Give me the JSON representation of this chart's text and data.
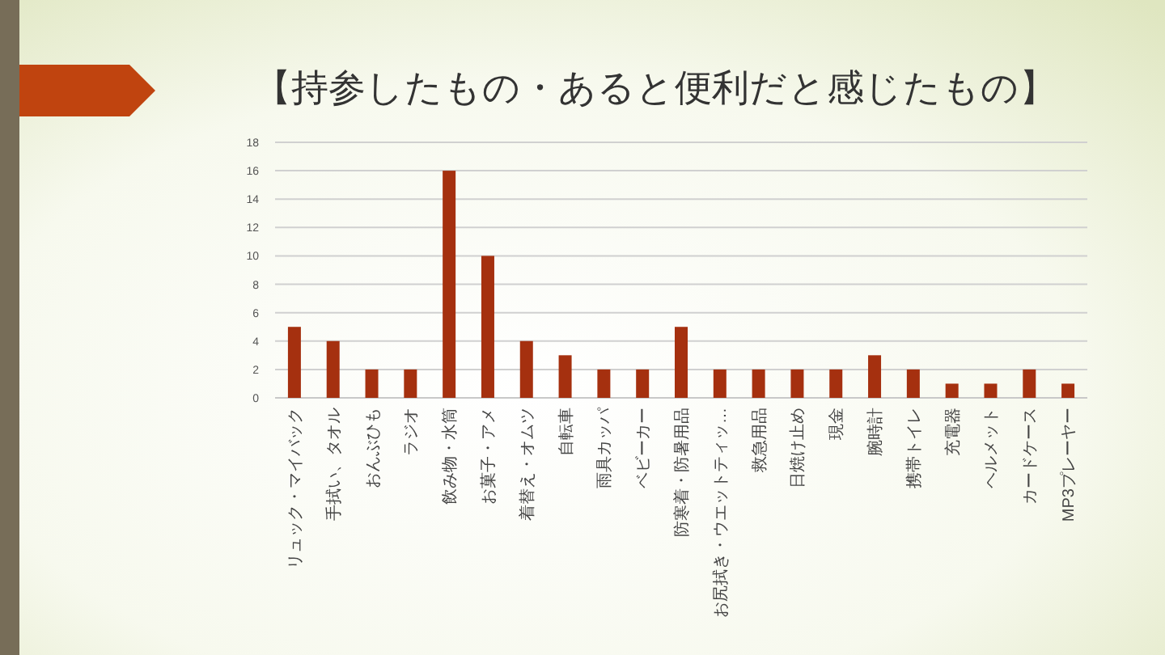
{
  "chart_data": {
    "type": "bar",
    "title": "【持参したもの・あると便利だと感じたもの】",
    "categories": [
      "リュック・マイバック",
      "手拭い、タオル",
      "おんぶひも",
      "ラジオ",
      "飲み物・水筒",
      "お菓子・アメ",
      "着替え・オムツ",
      "自転車",
      "雨具カッパ",
      "ベビーカー",
      "防寒着・防暑用品",
      "お尻拭き・ウエットティッ…",
      "救急用品",
      "日焼け止め",
      "現金",
      "腕時計",
      "携帯トイレ",
      "充電器",
      "ヘルメット",
      "カードケース",
      "MP3プレーヤー"
    ],
    "values": [
      5,
      4,
      2,
      2,
      16,
      10,
      4,
      3,
      2,
      2,
      5,
      2,
      2,
      2,
      2,
      3,
      2,
      1,
      1,
      2,
      1
    ],
    "color": "#a5300f",
    "ylim": [
      0,
      18
    ],
    "yticks": [
      0,
      2,
      4,
      6,
      8,
      10,
      12,
      14,
      16,
      18
    ],
    "grid": "y"
  }
}
